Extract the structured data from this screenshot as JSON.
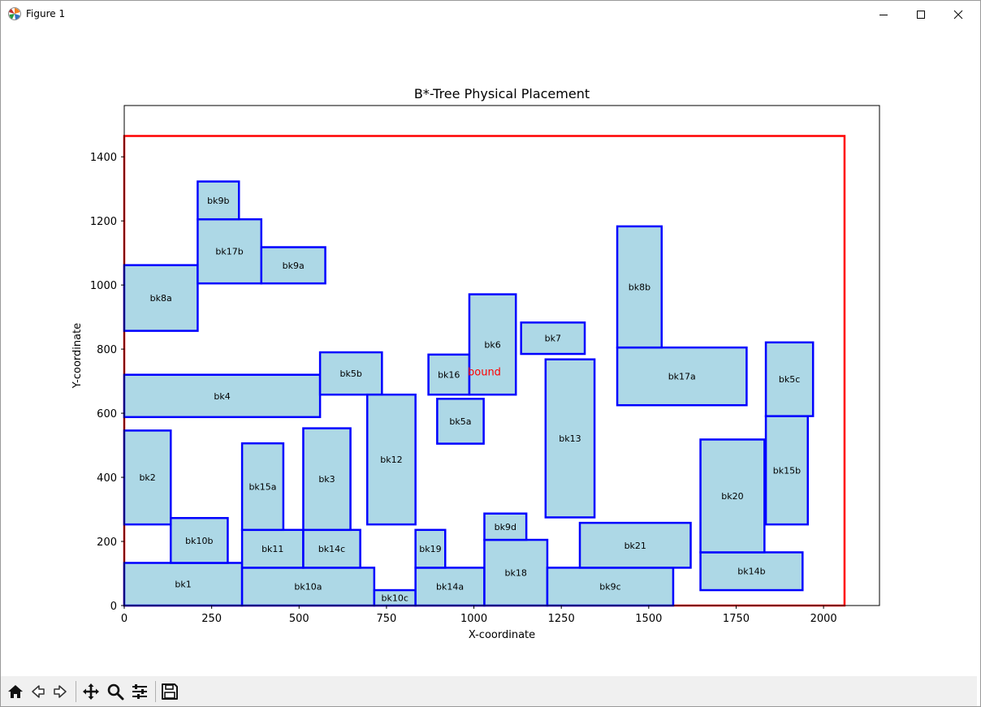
{
  "window": {
    "title": "Figure 1",
    "controls": {
      "minimize": "minimize-icon",
      "maximize": "maximize-icon",
      "close": "close-icon"
    }
  },
  "toolbar": {
    "buttons": [
      {
        "name": "home-button",
        "icon": "home-icon"
      },
      {
        "name": "back-button",
        "icon": "back-arrow-icon"
      },
      {
        "name": "forward-button",
        "icon": "forward-arrow-icon"
      },
      {
        "name": "pan-button",
        "icon": "move-icon"
      },
      {
        "name": "zoom-button",
        "icon": "magnifier-icon"
      },
      {
        "name": "configure-subplots-button",
        "icon": "sliders-icon"
      },
      {
        "name": "save-button",
        "icon": "save-icon"
      }
    ]
  },
  "chart_data": {
    "type": "rectangles",
    "title": "B*-Tree Physical Placement",
    "xlabel": "X-coordinate",
    "ylabel": "Y-coordinate",
    "xlim": [
      0,
      2160
    ],
    "ylim": [
      0,
      1560
    ],
    "xticks": [
      0,
      250,
      500,
      750,
      1000,
      1250,
      1500,
      1750,
      2000
    ],
    "yticks": [
      0,
      200,
      400,
      600,
      800,
      1000,
      1200,
      1400
    ],
    "grid": false,
    "colors": {
      "block_fill": "#add8e6",
      "block_edge": "#0000ff",
      "bound": "#ff0000"
    },
    "bound": {
      "label": "bound",
      "x": 0,
      "y": 0,
      "w": 2060,
      "h": 1465,
      "label_x": 1030,
      "label_y": 730
    },
    "blocks": [
      {
        "name": "bk1",
        "x": 0,
        "y": 0,
        "w": 337,
        "h": 133
      },
      {
        "name": "bk10b",
        "x": 133,
        "y": 133,
        "w": 163,
        "h": 140
      },
      {
        "name": "bk2",
        "x": 0,
        "y": 253,
        "w": 133,
        "h": 293
      },
      {
        "name": "bk4",
        "x": 0,
        "y": 588,
        "w": 560,
        "h": 132
      },
      {
        "name": "bk8a",
        "x": 0,
        "y": 857,
        "w": 210,
        "h": 205
      },
      {
        "name": "bk17b",
        "x": 210,
        "y": 1005,
        "w": 182,
        "h": 200
      },
      {
        "name": "bk9b",
        "x": 210,
        "y": 1205,
        "w": 118,
        "h": 118
      },
      {
        "name": "bk9a",
        "x": 392,
        "y": 1005,
        "w": 183,
        "h": 113
      },
      {
        "name": "bk10a",
        "x": 337,
        "y": 0,
        "w": 378,
        "h": 118
      },
      {
        "name": "bk11",
        "x": 337,
        "y": 118,
        "w": 175,
        "h": 118
      },
      {
        "name": "bk15a",
        "x": 337,
        "y": 236,
        "w": 118,
        "h": 270
      },
      {
        "name": "bk14c",
        "x": 512,
        "y": 118,
        "w": 163,
        "h": 118
      },
      {
        "name": "bk3",
        "x": 512,
        "y": 236,
        "w": 135,
        "h": 317
      },
      {
        "name": "bk5b",
        "x": 560,
        "y": 658,
        "w": 177,
        "h": 132
      },
      {
        "name": "bk10c",
        "x": 715,
        "y": 0,
        "w": 118,
        "h": 48
      },
      {
        "name": "bk12",
        "x": 695,
        "y": 253,
        "w": 138,
        "h": 405
      },
      {
        "name": "bk14a",
        "x": 833,
        "y": 0,
        "w": 197,
        "h": 118
      },
      {
        "name": "bk19",
        "x": 833,
        "y": 118,
        "w": 85,
        "h": 118
      },
      {
        "name": "bk5a",
        "x": 895,
        "y": 505,
        "w": 133,
        "h": 140
      },
      {
        "name": "bk16",
        "x": 870,
        "y": 658,
        "w": 117,
        "h": 125
      },
      {
        "name": "bk6",
        "x": 987,
        "y": 658,
        "w": 133,
        "h": 313
      },
      {
        "name": "bk18",
        "x": 1030,
        "y": 0,
        "w": 180,
        "h": 205
      },
      {
        "name": "bk9d",
        "x": 1030,
        "y": 205,
        "w": 120,
        "h": 82
      },
      {
        "name": "bk7",
        "x": 1135,
        "y": 785,
        "w": 182,
        "h": 98
      },
      {
        "name": "bk13",
        "x": 1205,
        "y": 275,
        "w": 140,
        "h": 493
      },
      {
        "name": "bk9c",
        "x": 1210,
        "y": 0,
        "w": 360,
        "h": 118
      },
      {
        "name": "bk21",
        "x": 1303,
        "y": 118,
        "w": 317,
        "h": 140
      },
      {
        "name": "bk17a",
        "x": 1410,
        "y": 625,
        "w": 370,
        "h": 180
      },
      {
        "name": "bk8b",
        "x": 1410,
        "y": 805,
        "w": 127,
        "h": 378
      },
      {
        "name": "bk14b",
        "x": 1648,
        "y": 48,
        "w": 292,
        "h": 118
      },
      {
        "name": "bk20",
        "x": 1648,
        "y": 166,
        "w": 183,
        "h": 352
      },
      {
        "name": "bk15b",
        "x": 1835,
        "y": 253,
        "w": 120,
        "h": 338
      },
      {
        "name": "bk5c",
        "x": 1835,
        "y": 591,
        "w": 135,
        "h": 230
      }
    ]
  }
}
